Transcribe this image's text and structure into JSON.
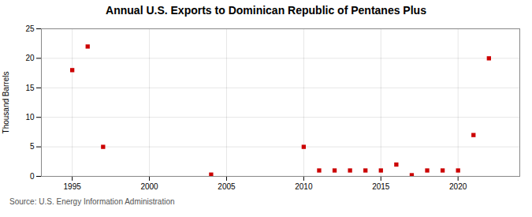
{
  "chart_data": {
    "type": "scatter",
    "title": "Annual U.S. Exports to Dominican Republic of Pentanes Plus",
    "ylabel": "Thousand Barrels",
    "source": "Source: U.S. Energy Information Administration",
    "x": [
      1995,
      1996,
      1997,
      2004,
      2010,
      2011,
      2012,
      2013,
      2014,
      2015,
      2016,
      2017,
      2018,
      2019,
      2020,
      2021,
      2022
    ],
    "values": [
      18,
      22,
      5,
      0.3,
      5,
      1,
      1,
      1,
      1,
      1,
      2,
      0.2,
      1,
      1,
      1,
      7,
      20
    ],
    "color": "#cc0000",
    "marker": "square",
    "xlim": [
      1993,
      2024
    ],
    "ylim": [
      0,
      25
    ],
    "xticks": [
      1995,
      2000,
      2005,
      2010,
      2015,
      2020
    ],
    "yticks": [
      0,
      5,
      10,
      15,
      20,
      25
    ],
    "grid": true
  }
}
